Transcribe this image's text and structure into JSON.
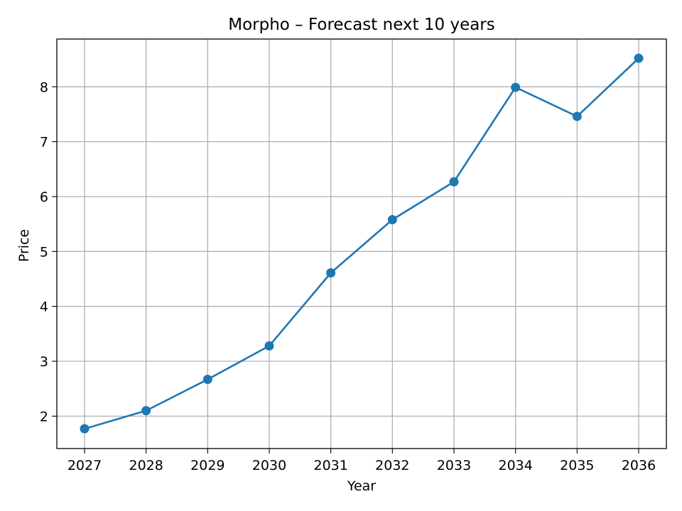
{
  "chart_data": {
    "type": "line",
    "title": "Morpho – Forecast next 10 years",
    "xlabel": "Year",
    "ylabel": "Price",
    "x": [
      2027,
      2028,
      2029,
      2030,
      2031,
      2032,
      2033,
      2034,
      2035,
      2036
    ],
    "x_tick_labels": [
      "2027",
      "2028",
      "2029",
      "2030",
      "2031",
      "2032",
      "2033",
      "2034",
      "2035",
      "2036"
    ],
    "y_ticks": [
      2,
      3,
      4,
      5,
      6,
      7,
      8
    ],
    "y_tick_labels": [
      "2",
      "3",
      "4",
      "5",
      "6",
      "7",
      "8"
    ],
    "xlim": [
      2026.55,
      2036.45
    ],
    "ylim": [
      1.41,
      8.87
    ],
    "grid": true,
    "legend": false,
    "series": [
      {
        "values": [
          1.77,
          2.1,
          2.67,
          3.28,
          4.61,
          5.58,
          6.27,
          7.99,
          7.46,
          8.52
        ],
        "color": "#1f77b4",
        "marker": "circle"
      }
    ]
  }
}
